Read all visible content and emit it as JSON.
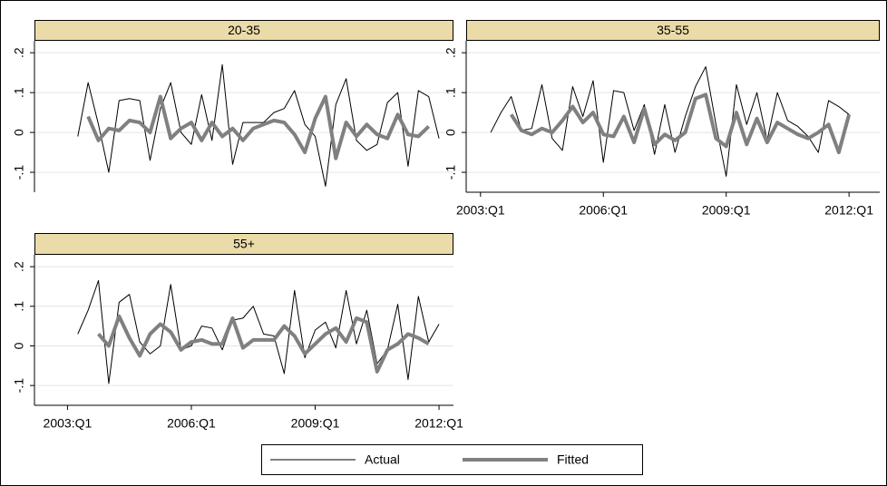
{
  "chart_data": [
    {
      "type": "line",
      "title": "20-35",
      "x": [
        2003.25,
        2003.5,
        2003.75,
        2004,
        2004.25,
        2004.5,
        2004.75,
        2005,
        2005.25,
        2005.5,
        2005.75,
        2006,
        2006.25,
        2006.5,
        2006.75,
        2007,
        2007.25,
        2007.5,
        2007.75,
        2008,
        2008.25,
        2008.5,
        2008.75,
        2009,
        2009.25,
        2009.5,
        2009.75,
        2010,
        2010.25,
        2010.5,
        2010.75,
        2011,
        2011.25,
        2011.5,
        2011.75,
        2012
      ],
      "series": [
        {
          "name": "Actual",
          "color": "#000000",
          "values": [
            -0.01,
            0.125,
            0.02,
            -0.1,
            0.08,
            0.085,
            0.08,
            -0.07,
            0.06,
            0.125,
            0.0,
            -0.03,
            0.095,
            -0.02,
            0.17,
            -0.08,
            0.025,
            0.025,
            0.025,
            0.05,
            0.06,
            0.105,
            0.02,
            -0.01,
            -0.135,
            0.07,
            0.135,
            -0.02,
            -0.045,
            -0.03,
            0.075,
            0.1,
            -0.085,
            0.105,
            0.09,
            -0.015
          ]
        },
        {
          "name": "Fitted",
          "color": "#808080",
          "values": [
            null,
            0.04,
            -0.02,
            0.01,
            0.005,
            0.03,
            0.025,
            0.0,
            0.09,
            -0.015,
            0.01,
            0.025,
            -0.02,
            0.025,
            -0.01,
            0.01,
            -0.02,
            0.01,
            0.02,
            0.03,
            0.025,
            -0.005,
            -0.05,
            0.035,
            0.09,
            -0.065,
            0.025,
            -0.01,
            0.02,
            -0.005,
            -0.015,
            0.045,
            -0.005,
            -0.01,
            0.015,
            null
          ]
        }
      ],
      "xlim": [
        2002.2,
        2012.35
      ],
      "ylim": [
        -0.15,
        0.23
      ],
      "yticks": [
        {
          "value": -0.1,
          "label": "-.1"
        },
        0,
        {
          "value": 0.1,
          "label": ".1"
        },
        {
          "value": 0.2,
          "label": ".2"
        }
      ]
    },
    {
      "type": "line",
      "title": "35-55",
      "x": [
        2003.25,
        2003.5,
        2003.75,
        2004,
        2004.25,
        2004.5,
        2004.75,
        2005,
        2005.25,
        2005.5,
        2005.75,
        2006,
        2006.25,
        2006.5,
        2006.75,
        2007,
        2007.25,
        2007.5,
        2007.75,
        2008,
        2008.25,
        2008.5,
        2008.75,
        2009,
        2009.25,
        2009.5,
        2009.75,
        2010,
        2010.25,
        2010.5,
        2010.75,
        2011,
        2011.25,
        2011.5,
        2011.75,
        2012
      ],
      "series": [
        {
          "name": "Actual",
          "color": "#000000",
          "values": [
            0.0,
            0.05,
            0.09,
            0.005,
            0.01,
            0.12,
            -0.015,
            -0.045,
            0.115,
            0.04,
            0.13,
            -0.075,
            0.105,
            0.1,
            0.005,
            0.07,
            -0.055,
            0.07,
            -0.05,
            0.04,
            0.115,
            0.165,
            0.02,
            -0.11,
            0.12,
            0.02,
            0.1,
            -0.02,
            0.1,
            0.03,
            0.015,
            -0.01,
            -0.05,
            0.08,
            0.065,
            0.045
          ]
        },
        {
          "name": "Fitted",
          "color": "#808080",
          "values": [
            null,
            null,
            0.045,
            0.005,
            -0.005,
            0.01,
            0.0,
            0.03,
            0.065,
            0.025,
            0.05,
            -0.005,
            -0.01,
            0.04,
            -0.025,
            0.06,
            -0.03,
            -0.005,
            -0.02,
            0.0,
            0.085,
            0.095,
            -0.015,
            -0.035,
            0.05,
            -0.03,
            0.035,
            -0.025,
            0.025,
            0.01,
            -0.005,
            -0.015,
            0.0,
            0.02,
            -0.05,
            0.045
          ]
        }
      ],
      "xlim": [
        2002.65,
        2012.75
      ],
      "ylim": [
        -0.15,
        0.23
      ],
      "xticks": [
        {
          "value": 2003,
          "label": "2003:Q1"
        },
        {
          "value": 2006,
          "label": "2006:Q1"
        },
        {
          "value": 2009,
          "label": "2009:Q1"
        },
        {
          "value": 2012,
          "label": "2012:Q1"
        }
      ],
      "yticks": [
        {
          "value": -0.1,
          "label": "-.1"
        },
        0,
        {
          "value": 0.1,
          "label": ".1"
        },
        {
          "value": 0.2,
          "label": ".2"
        }
      ]
    },
    {
      "type": "line",
      "title": "55+",
      "x": [
        2003.25,
        2003.5,
        2003.75,
        2004,
        2004.25,
        2004.5,
        2004.75,
        2005,
        2005.25,
        2005.5,
        2005.75,
        2006,
        2006.25,
        2006.5,
        2006.75,
        2007,
        2007.25,
        2007.5,
        2007.75,
        2008,
        2008.25,
        2008.5,
        2008.75,
        2009,
        2009.25,
        2009.5,
        2009.75,
        2010,
        2010.25,
        2010.5,
        2010.75,
        2011,
        2011.25,
        2011.5,
        2011.75,
        2012
      ],
      "series": [
        {
          "name": "Actual",
          "color": "#000000",
          "values": [
            0.03,
            0.09,
            0.165,
            -0.095,
            0.11,
            0.13,
            0.01,
            -0.02,
            0.0,
            0.155,
            -0.01,
            0.0,
            0.05,
            0.045,
            -0.01,
            0.065,
            0.07,
            0.1,
            0.03,
            0.025,
            -0.07,
            0.14,
            -0.03,
            0.04,
            0.06,
            -0.005,
            0.14,
            0.005,
            0.09,
            -0.045,
            -0.01,
            0.105,
            -0.085,
            0.125,
            0.01,
            0.055
          ]
        },
        {
          "name": "Fitted",
          "color": "#808080",
          "values": [
            null,
            null,
            0.03,
            0.0,
            0.075,
            0.02,
            -0.025,
            0.03,
            0.055,
            0.035,
            -0.01,
            0.01,
            0.015,
            0.005,
            0.005,
            0.07,
            -0.005,
            0.015,
            0.015,
            0.015,
            0.05,
            0.025,
            -0.02,
            0.005,
            0.03,
            0.045,
            0.01,
            0.07,
            0.06,
            -0.065,
            -0.01,
            0.005,
            0.03,
            0.02,
            0.005,
            null
          ]
        }
      ],
      "xlim": [
        2002.2,
        2012.35
      ],
      "ylim": [
        -0.15,
        0.23
      ],
      "xticks": [
        {
          "value": 2003,
          "label": "2003:Q1"
        },
        {
          "value": 2006,
          "label": "2006:Q1"
        },
        {
          "value": 2009,
          "label": "2009:Q1"
        },
        {
          "value": 2012,
          "label": "2012:Q1"
        }
      ],
      "yticks": [
        {
          "value": -0.1,
          "label": "-.1"
        },
        0,
        {
          "value": 0.1,
          "label": ".1"
        },
        {
          "value": 0.2,
          "label": ".2"
        }
      ]
    }
  ]
}
